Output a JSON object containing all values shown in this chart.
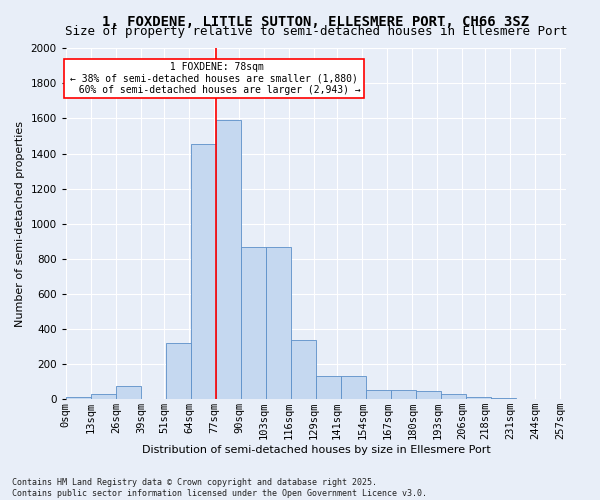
{
  "title": "1, FOXDENE, LITTLE SUTTON, ELLESMERE PORT, CH66 3SZ",
  "subtitle": "Size of property relative to semi-detached houses in Ellesmere Port",
  "xlabel": "Distribution of semi-detached houses by size in Ellesmere Port",
  "ylabel": "Number of semi-detached properties",
  "footnote": "Contains HM Land Registry data © Crown copyright and database right 2025.\nContains public sector information licensed under the Open Government Licence v3.0.",
  "bin_labels": [
    "0sqm",
    "13sqm",
    "26sqm",
    "39sqm",
    "51sqm",
    "64sqm",
    "77sqm",
    "90sqm",
    "103sqm",
    "116sqm",
    "129sqm",
    "141sqm",
    "154sqm",
    "167sqm",
    "180sqm",
    "193sqm",
    "206sqm",
    "218sqm",
    "231sqm",
    "244sqm",
    "257sqm"
  ],
  "bar_heights": [
    12,
    28,
    75,
    0,
    320,
    1455,
    1590,
    870,
    870,
    340,
    130,
    130,
    55,
    55,
    45,
    30,
    12,
    5,
    3,
    2
  ],
  "bar_color": "#c5d8f0",
  "bar_edge_color": "#5b8fc9",
  "property_size_bin": 5,
  "property_label": "1 FOXDENE: 78sqm",
  "pct_smaller": 38,
  "pct_larger": 60,
  "count_smaller": "1,880",
  "count_larger": "2,943",
  "vline_color": "red",
  "ylim": [
    0,
    2000
  ],
  "yticks": [
    0,
    200,
    400,
    600,
    800,
    1000,
    1200,
    1400,
    1600,
    1800,
    2000
  ],
  "bg_color": "#e8eef8",
  "grid_color": "white",
  "title_fontsize": 10,
  "subtitle_fontsize": 9,
  "axis_label_fontsize": 8,
  "tick_fontsize": 7.5,
  "footnote_fontsize": 6
}
